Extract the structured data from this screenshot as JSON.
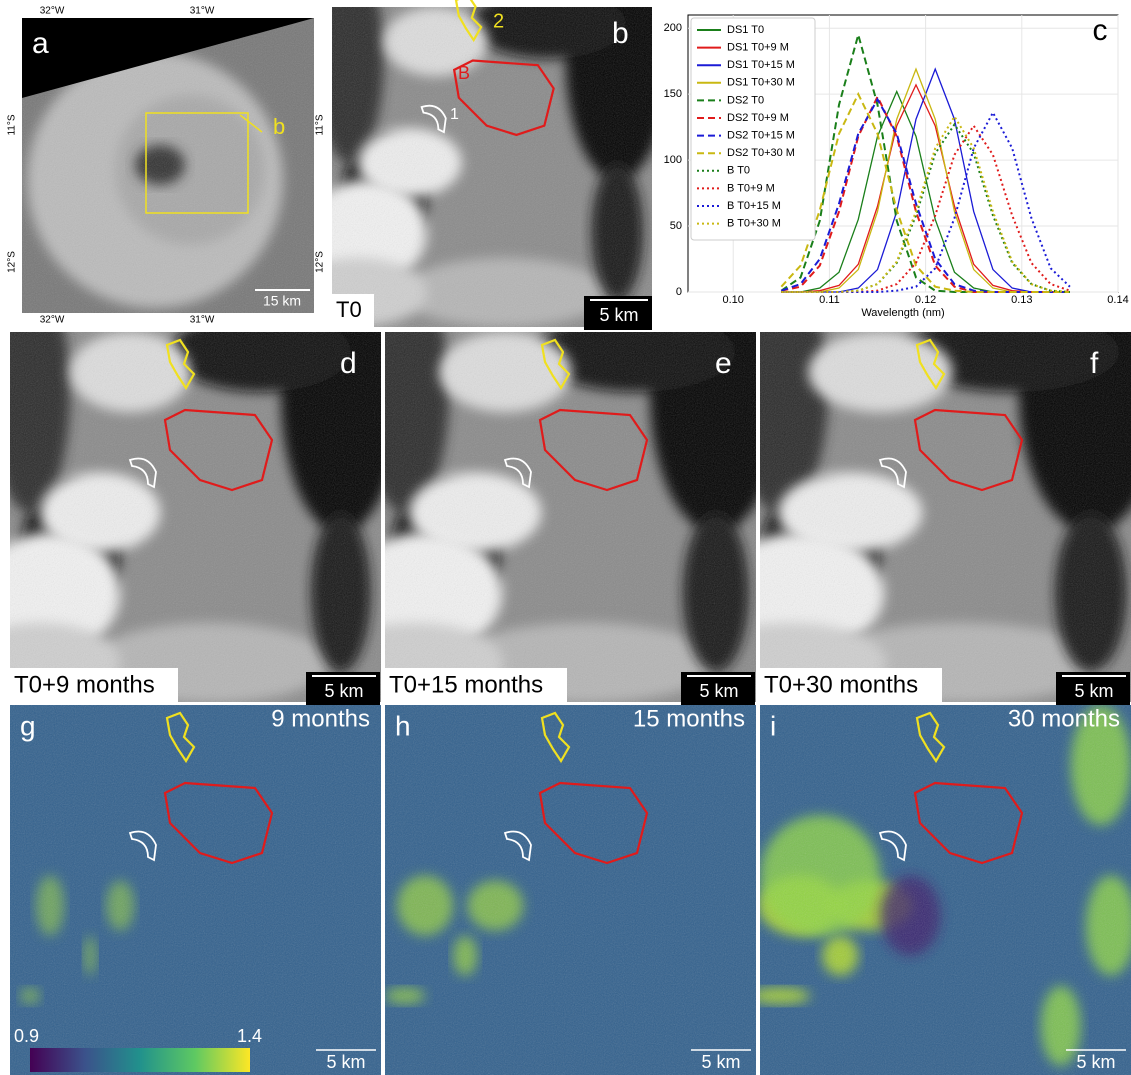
{
  "figure": {
    "panel_a": {
      "letter": "a",
      "inset_label": "b",
      "lon_labels": [
        "32°W",
        "31°W"
      ],
      "lat_labels": [
        "11°S",
        "12°S"
      ],
      "scale": "15 km"
    },
    "panel_b": {
      "letter": "b",
      "time": "T0",
      "scale": "5 km",
      "markers": [
        "1",
        "2",
        "B"
      ]
    },
    "panel_d": {
      "letter": "d",
      "time": "T0+9 months",
      "scale": "5 km"
    },
    "panel_e": {
      "letter": "e",
      "time": "T0+15 months",
      "scale": "5 km"
    },
    "panel_f": {
      "letter": "f",
      "time": "T0+30 months",
      "scale": "5 km"
    },
    "panel_g": {
      "letter": "g",
      "duration": "9 months",
      "scale": "5 km",
      "colorbar_labels": [
        "0.9",
        "1.4"
      ]
    },
    "panel_h": {
      "letter": "h",
      "duration": "15 months",
      "scale": "5 km"
    },
    "panel_i": {
      "letter": "i",
      "duration": "30 months",
      "scale": "5 km"
    }
  },
  "chart_data": {
    "type": "line",
    "letter": "c",
    "x_label": "Wavelength (nm)",
    "x": [
      0.105,
      0.107,
      0.109,
      0.111,
      0.113,
      0.115,
      0.117,
      0.119,
      0.121,
      0.123,
      0.125,
      0.127,
      0.129,
      0.131,
      0.133,
      0.135
    ],
    "xlim": [
      0.0953,
      0.14
    ],
    "xticks": [
      {
        "value": 0.1,
        "label": "0.10"
      },
      0.11,
      0.12,
      0.13,
      0.14
    ],
    "ylim": [
      0,
      210
    ],
    "yticks": [
      0,
      50,
      100,
      150,
      200
    ],
    "grid": true,
    "legend": "upper left",
    "series": [
      {
        "name": "DS1 T0",
        "color": "#1a7f1a",
        "style": "solid",
        "values": [
          0,
          0,
          3,
          15,
          55,
          118,
          152,
          118,
          55,
          15,
          3,
          0,
          0,
          0,
          0,
          0
        ]
      },
      {
        "name": "DS1 T0+9 M",
        "color": "#e01b1b",
        "style": "solid",
        "values": [
          0,
          0,
          1,
          5,
          21,
          65,
          126,
          157,
          126,
          65,
          21,
          5,
          1,
          0,
          0,
          0
        ]
      },
      {
        "name": "DS1 T0+15 M",
        "color": "#1b1bd6",
        "style": "solid",
        "values": [
          0,
          0,
          0,
          0,
          3,
          17,
          61,
          131,
          169,
          131,
          61,
          17,
          3,
          0,
          0,
          0
        ]
      },
      {
        "name": "DS1 T0+30 M",
        "color": "#c9b812",
        "style": "solid",
        "values": [
          0,
          0,
          0,
          3,
          17,
          61,
          131,
          169,
          131,
          61,
          17,
          3,
          0,
          0,
          0,
          0
        ]
      },
      {
        "name": "DS2 T0",
        "color": "#1a7f1a",
        "style": "dashed",
        "values": [
          1,
          11,
          54,
          142,
          195,
          142,
          54,
          11,
          1,
          0,
          0,
          0,
          0,
          0,
          0,
          0
        ]
      },
      {
        "name": "DS2 T0+9 M",
        "color": "#e01b1b",
        "style": "dashed",
        "values": [
          1,
          4,
          20,
          61,
          118,
          148,
          118,
          61,
          20,
          4,
          0,
          0,
          0,
          0,
          0,
          0
        ]
      },
      {
        "name": "DS2 T0+15 M",
        "color": "#1b1bd6",
        "style": "dashed",
        "values": [
          1,
          6,
          25,
          67,
          120,
          146,
          120,
          67,
          25,
          6,
          1,
          0,
          0,
          0,
          0,
          0
        ]
      },
      {
        "name": "DS2 T0+30 M",
        "color": "#c9b812",
        "style": "dashed",
        "values": [
          4,
          20,
          62,
          120,
          150,
          120,
          62,
          20,
          4,
          1,
          0,
          0,
          0,
          0,
          0,
          0
        ]
      },
      {
        "name": "B T0",
        "color": "#1a7f1a",
        "style": "dotted",
        "values": [
          0,
          0,
          0,
          0,
          1,
          6,
          22,
          58,
          105,
          127,
          105,
          58,
          22,
          6,
          1,
          0
        ]
      },
      {
        "name": "B T0+9 M",
        "color": "#e01b1b",
        "style": "dotted",
        "values": [
          0,
          0,
          0,
          0,
          0,
          1,
          6,
          22,
          58,
          104,
          126,
          104,
          58,
          22,
          6,
          1
        ]
      },
      {
        "name": "B T0+15 M",
        "color": "#1b1bd6",
        "style": "dotted",
        "values": [
          0,
          0,
          0,
          0,
          0,
          0,
          1,
          4,
          18,
          56,
          109,
          136,
          109,
          56,
          18,
          4
        ]
      },
      {
        "name": "B T0+30 M",
        "color": "#c9b812",
        "style": "dotted",
        "values": [
          0,
          0,
          0,
          0,
          1,
          6,
          23,
          61,
          109,
          133,
          109,
          61,
          23,
          6,
          1,
          0
        ]
      }
    ]
  }
}
